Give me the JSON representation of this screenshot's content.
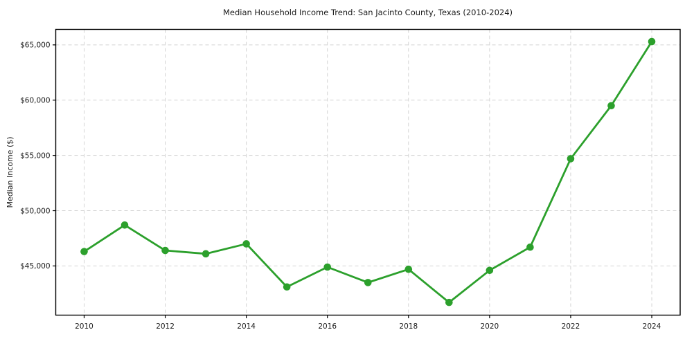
{
  "figure": {
    "title": "Median Household Income Trend: San Jacinto County, Texas (2010-2024)",
    "ylabel": "Median Income ($)"
  },
  "colors": {
    "line": "#2ca02c",
    "marker": "#2ca02c",
    "grid": "#d3d3d3",
    "spine": "#000000",
    "text": "#1a1a1a",
    "background": "#ffffff"
  },
  "chart_data": {
    "type": "line",
    "title": "Median Household Income Trend: San Jacinto County, Texas (2010-2024)",
    "xlabel": "",
    "ylabel": "Median Income ($)",
    "x": [
      2010,
      2011,
      2012,
      2013,
      2014,
      2015,
      2016,
      2017,
      2018,
      2019,
      2020,
      2021,
      2022,
      2023,
      2024
    ],
    "values": [
      46300,
      48700,
      46400,
      46100,
      47000,
      43100,
      44900,
      43500,
      44700,
      41700,
      44600,
      46700,
      54700,
      59500,
      65300
    ],
    "series_name": "Median Household Income",
    "x_tick_values": [
      2010,
      2012,
      2014,
      2016,
      2018,
      2020,
      2022,
      2024
    ],
    "x_tick_labels": [
      "2010",
      "2012",
      "2014",
      "2016",
      "2018",
      "2020",
      "2022",
      "2024"
    ],
    "y_tick_values": [
      45000,
      50000,
      55000,
      60000,
      65000
    ],
    "y_tick_labels": [
      "$45,000",
      "$50,000",
      "$55,000",
      "$60,000",
      "$65,000"
    ],
    "xlim": [
      2009.3,
      2024.7
    ],
    "ylim": [
      40550,
      66400
    ],
    "grid": "dashed-both",
    "legend": "none",
    "marker": "circle"
  }
}
